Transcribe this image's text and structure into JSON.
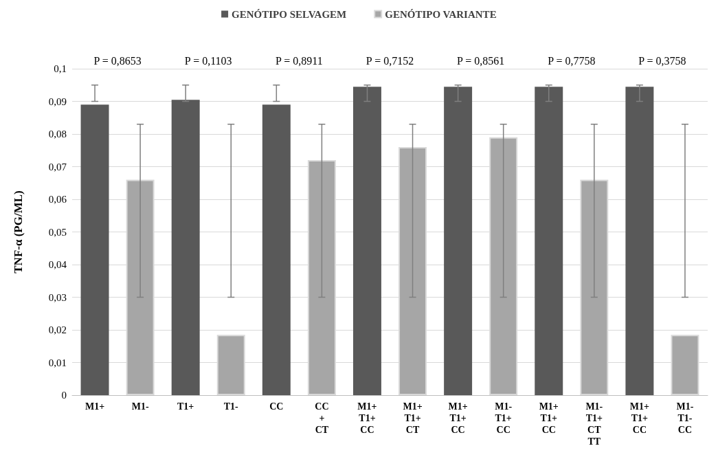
{
  "chart_data": {
    "type": "bar",
    "ylabel": "TNF-α (PG/ML)",
    "categories": [
      "M1+",
      "M1-",
      "T1+",
      "T1-",
      "CC",
      "CC\n+\nCT",
      "M1+\nT1+\nCC",
      "M1+\nT1+\nCT",
      "M1+\nT1+\nCC",
      "M1-\nT1+\nCC",
      "M1+\nT1+\nCC",
      "M1-\nT1+\nCT\nTT",
      "M1+\nT1+\nCC",
      "M1-\nT1-\nCC"
    ],
    "series": [
      {
        "name": "GENÓTIPO SELVAGEM",
        "color": "#595959",
        "values": [
          0.089,
          null,
          0.0905,
          null,
          0.089,
          null,
          0.0945,
          null,
          0.0945,
          null,
          0.0945,
          null,
          0.0945,
          null
        ],
        "errors": [
          [
            0.09,
            0.095
          ],
          null,
          [
            0.09,
            0.095
          ],
          null,
          [
            0.09,
            0.095
          ],
          null,
          [
            0.09,
            0.095
          ],
          null,
          [
            0.09,
            0.095
          ],
          null,
          [
            0.09,
            0.095
          ],
          null,
          [
            0.09,
            0.095
          ],
          null
        ]
      },
      {
        "name": "GENÓTIPO VARIANTE",
        "color": "#a6a6a6",
        "values": [
          null,
          0.066,
          null,
          0.0185,
          null,
          0.072,
          null,
          0.076,
          null,
          0.079,
          null,
          0.066,
          null,
          0.0185
        ],
        "errors": [
          null,
          [
            0.03,
            0.083
          ],
          null,
          [
            0.03,
            0.083
          ],
          null,
          [
            0.03,
            0.083
          ],
          null,
          [
            0.03,
            0.083
          ],
          null,
          [
            0.03,
            0.083
          ],
          null,
          [
            0.03,
            0.083
          ],
          null,
          [
            0.03,
            0.083
          ]
        ]
      }
    ],
    "annotations": [
      "P = 0,8653",
      "P = 0,1103",
      "P = 0,8911",
      "P = 0,7152",
      "P = 0,8561",
      "P = 0,7758",
      "P = 0,3758"
    ],
    "ylim": [
      0,
      0.1
    ],
    "yticks": [
      0,
      {
        "value": 0.01,
        "label": "0,01"
      },
      {
        "value": 0.02,
        "label": "0,02"
      },
      {
        "value": 0.03,
        "label": "0,03"
      },
      {
        "value": 0.04,
        "label": "0,04"
      },
      {
        "value": 0.05,
        "label": "0,05"
      },
      {
        "value": 0.06,
        "label": "0,06"
      },
      {
        "value": 0.07,
        "label": "0,07"
      },
      {
        "value": 0.08,
        "label": "0,08"
      },
      {
        "value": 0.09,
        "label": "0,09"
      },
      {
        "value": 0.1,
        "label": "0,1"
      }
    ],
    "grid": "y",
    "legend": "top"
  }
}
